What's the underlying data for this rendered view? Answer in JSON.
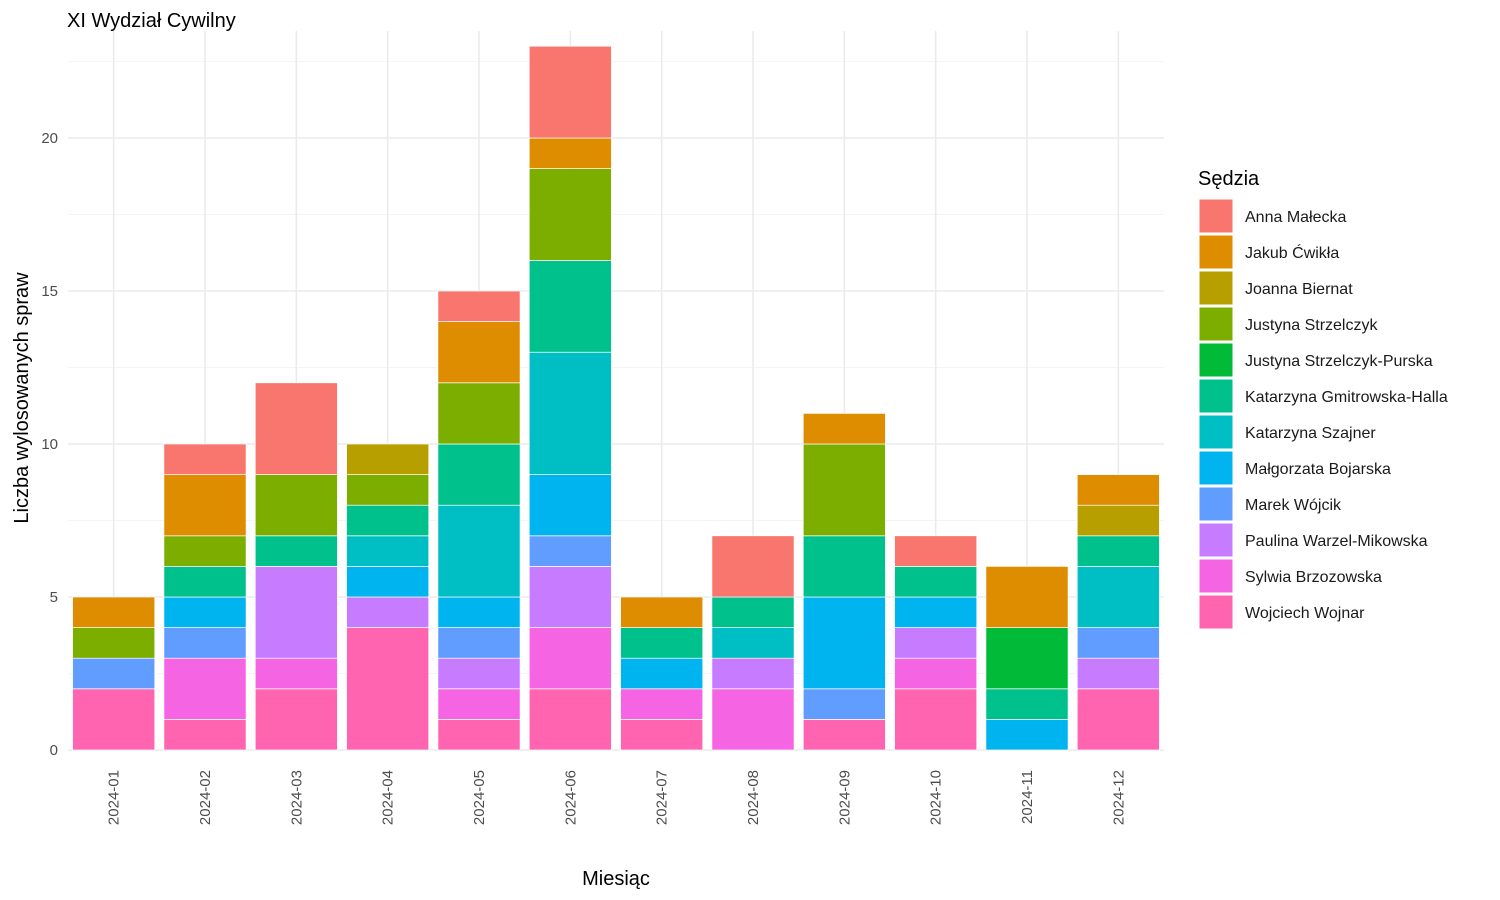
{
  "chart_data": {
    "type": "bar",
    "stacked": true,
    "title": "XI Wydział Cywilny",
    "xlabel": "Miesiąc",
    "ylabel": "Liczba wylosowanych spraw",
    "ylim": [
      0,
      23.5
    ],
    "yticks": [
      0,
      5,
      10,
      15,
      20
    ],
    "grid": true,
    "legend_position": "right",
    "legend_title": "Sędzia",
    "categories": [
      "2024-01",
      "2024-02",
      "2024-03",
      "2024-04",
      "2024-05",
      "2024-06",
      "2024-07",
      "2024-08",
      "2024-09",
      "2024-10",
      "2024-11",
      "2024-12"
    ],
    "series": [
      {
        "name": "Anna Małecka",
        "color": "#F8766D",
        "values": [
          0,
          1,
          3,
          0,
          1,
          3,
          0,
          2,
          0,
          1,
          0,
          0
        ]
      },
      {
        "name": "Jakub Ćwikła",
        "color": "#DE8C00",
        "values": [
          1,
          2,
          0,
          0,
          2,
          1,
          1,
          0,
          1,
          0,
          2,
          1
        ]
      },
      {
        "name": "Joanna Biernat",
        "color": "#B79F00",
        "values": [
          0,
          0,
          0,
          1,
          0,
          0,
          0,
          0,
          0,
          0,
          0,
          1
        ]
      },
      {
        "name": "Justyna Strzelczyk",
        "color": "#7CAE00",
        "values": [
          1,
          1,
          2,
          1,
          2,
          3,
          0,
          0,
          3,
          0,
          0,
          0
        ]
      },
      {
        "name": "Justyna Strzelczyk-Purska",
        "color": "#00BA38",
        "values": [
          0,
          0,
          0,
          0,
          0,
          0,
          0,
          0,
          0,
          0,
          2,
          0
        ]
      },
      {
        "name": "Katarzyna Gmitrowska-Halla",
        "color": "#00C08B",
        "values": [
          0,
          1,
          1,
          1,
          2,
          3,
          1,
          1,
          2,
          1,
          1,
          1
        ]
      },
      {
        "name": "Katarzyna Szajner",
        "color": "#00BFC4",
        "values": [
          0,
          0,
          0,
          1,
          3,
          4,
          0,
          1,
          0,
          0,
          0,
          2
        ]
      },
      {
        "name": "Małgorzata Bojarska",
        "color": "#00B4F0",
        "values": [
          0,
          1,
          0,
          1,
          1,
          2,
          1,
          0,
          3,
          1,
          1,
          0
        ]
      },
      {
        "name": "Marek Wójcik",
        "color": "#619CFF",
        "values": [
          1,
          1,
          0,
          0,
          1,
          1,
          0,
          0,
          1,
          0,
          0,
          1
        ]
      },
      {
        "name": "Paulina Warzel-Mikowska",
        "color": "#C77CFF",
        "values": [
          0,
          0,
          3,
          1,
          1,
          2,
          0,
          1,
          0,
          1,
          0,
          1
        ]
      },
      {
        "name": "Sylwia Brzozowska",
        "color": "#F564E3",
        "values": [
          0,
          2,
          1,
          0,
          1,
          2,
          1,
          2,
          0,
          1,
          0,
          0
        ]
      },
      {
        "name": "Wojciech Wojnar",
        "color": "#FF64B0",
        "values": [
          2,
          1,
          2,
          4,
          1,
          2,
          1,
          0,
          1,
          2,
          0,
          2
        ]
      }
    ]
  }
}
